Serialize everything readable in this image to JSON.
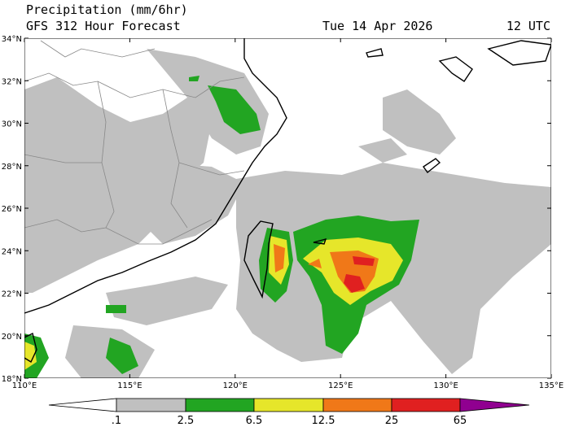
{
  "header": {
    "title": "Precipitation (mm/6hr)",
    "subtitle": "GFS 312 Hour Forecast",
    "date": "Tue 14 Apr 2026",
    "time": "12 UTC"
  },
  "map": {
    "lat_labels": [
      "34°N",
      "32°N",
      "30°N",
      "28°N",
      "26°N",
      "24°N",
      "22°N",
      "20°N",
      "18°N"
    ],
    "lon_labels": [
      "110°E",
      "115°E",
      "120°E",
      "125°E",
      "130°E",
      "135°E"
    ]
  },
  "colorbar": {
    "labels": [
      ".1",
      "2.5",
      "6.5",
      "12.5",
      "25",
      "65"
    ]
  }
}
